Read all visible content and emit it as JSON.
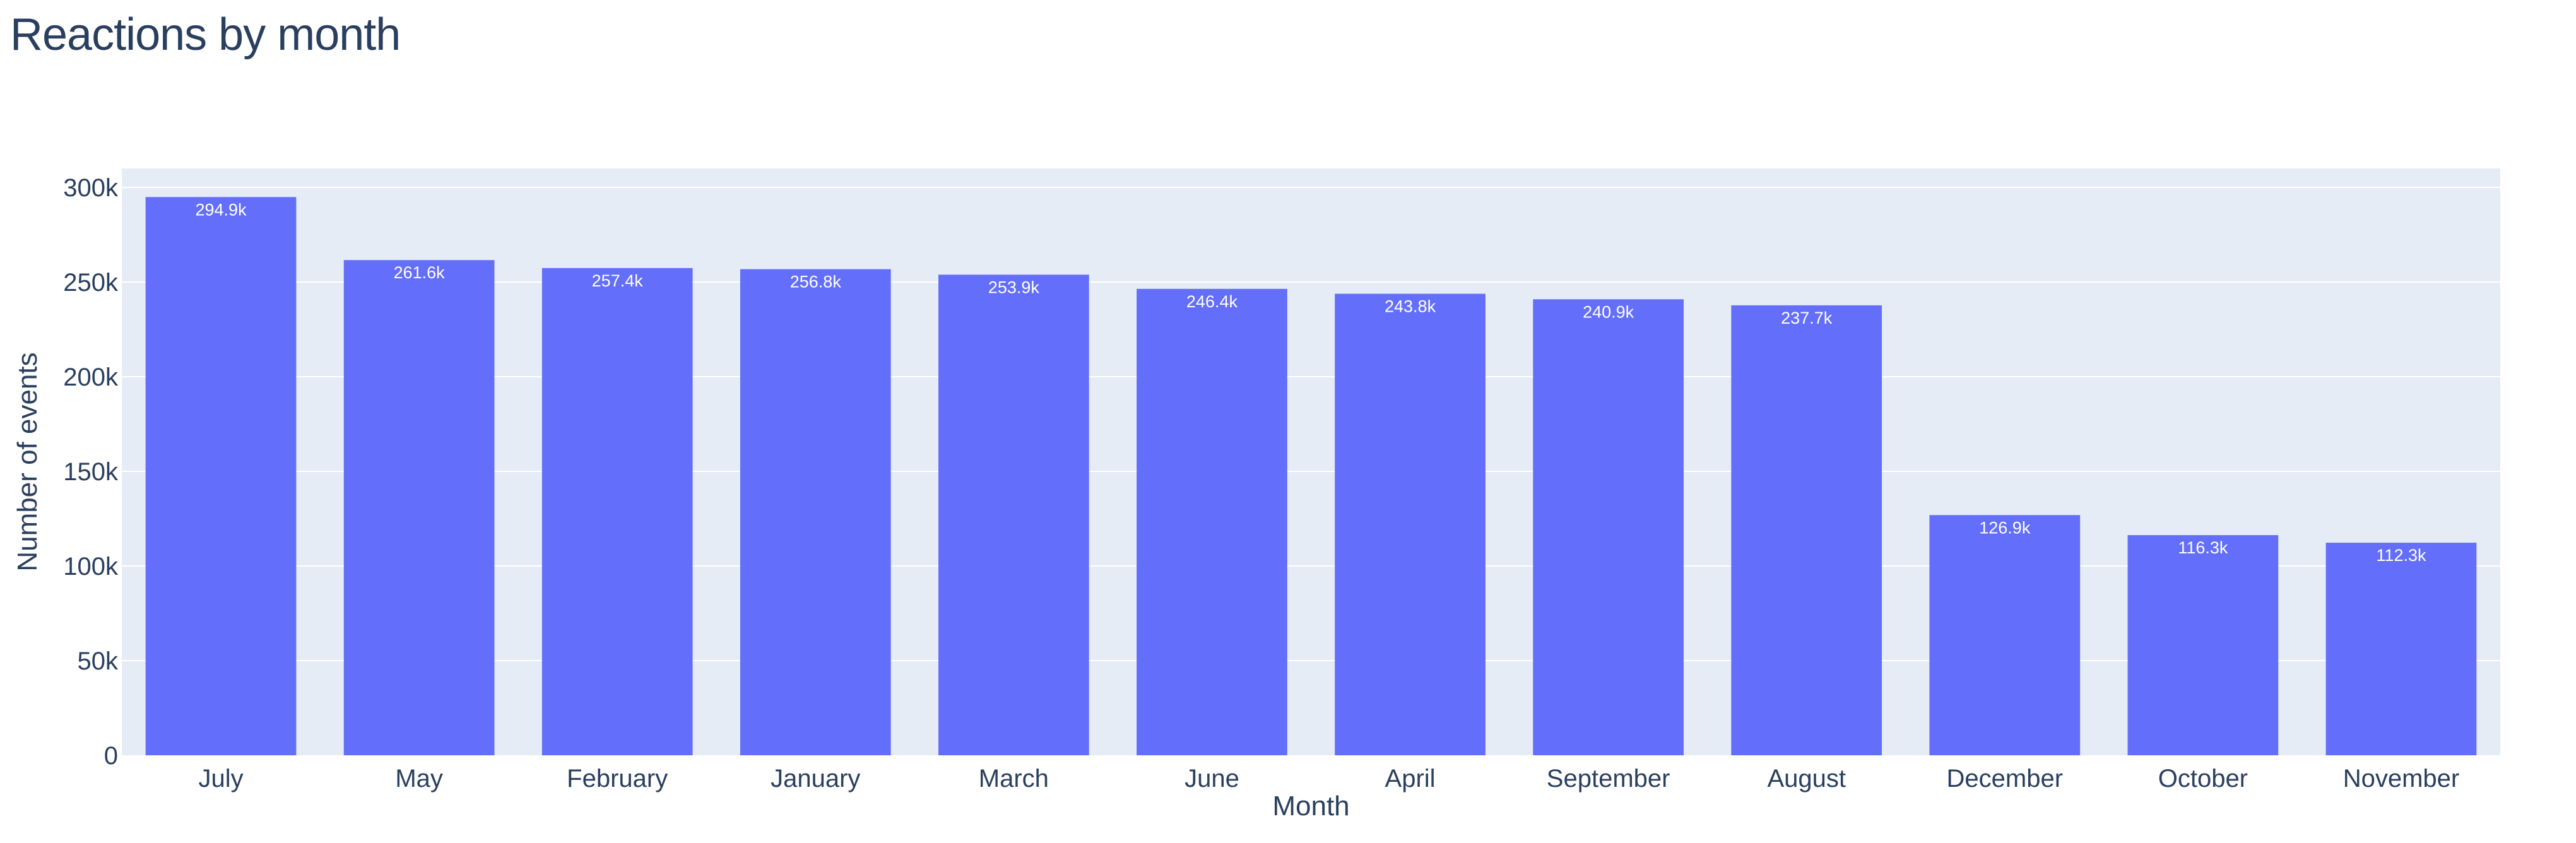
{
  "chart_data": {
    "type": "bar",
    "title": "Reactions by month",
    "xlabel": "Month",
    "ylabel": "Number of events",
    "categories": [
      "July",
      "May",
      "February",
      "January",
      "March",
      "June",
      "April",
      "September",
      "August",
      "December",
      "October",
      "November"
    ],
    "values": [
      294900,
      261600,
      257400,
      256800,
      253900,
      246400,
      243800,
      240900,
      237700,
      126900,
      116300,
      112300
    ],
    "data_labels": [
      "294.9k",
      "261.6k",
      "257.4k",
      "256.8k",
      "253.9k",
      "246.4k",
      "243.8k",
      "240.9k",
      "237.7k",
      "126.9k",
      "116.3k",
      "112.3k"
    ],
    "ylim": [
      0,
      310000
    ],
    "yticks": [
      0,
      50000,
      100000,
      150000,
      200000,
      250000,
      300000
    ],
    "ytick_labels": [
      "0",
      "50k",
      "100k",
      "150k",
      "200k",
      "250k",
      "300k"
    ],
    "grid": true,
    "legend": "none",
    "colors": {
      "bar": "#636efa",
      "plot_background": "#e5ecf6",
      "grid": "#ffffff",
      "text": "#2a3f5f",
      "data_label": "#ffffff"
    }
  }
}
